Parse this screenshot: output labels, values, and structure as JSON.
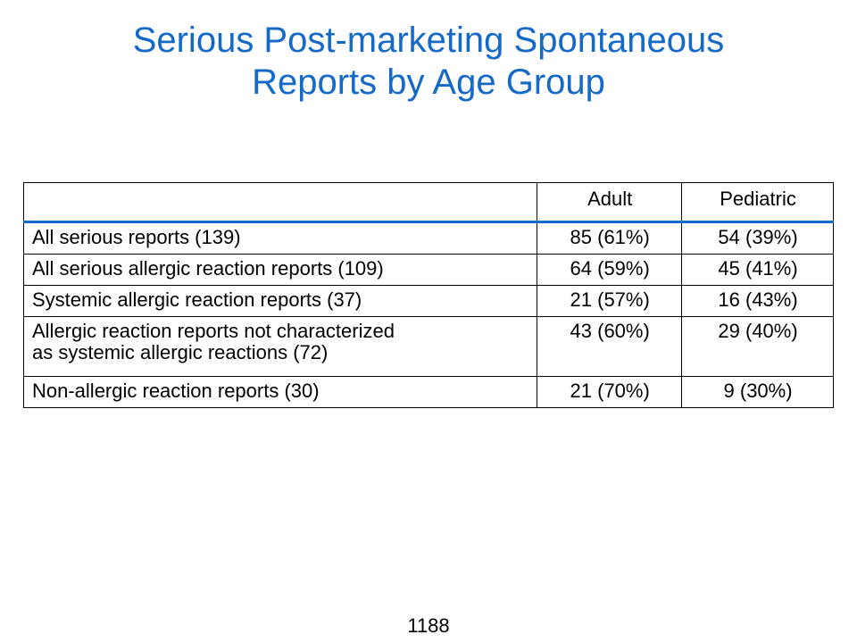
{
  "slide": {
    "title_line1": "Serious Post-marketing Spontaneous",
    "title_line2": "Reports by Age Group",
    "page_number": "1188"
  },
  "table": {
    "headers": [
      "",
      "Adult",
      "Pediatric"
    ],
    "rows": [
      {
        "label": "All serious reports (139)",
        "adult": "85 (61%)",
        "pediatric": "54 (39%)"
      },
      {
        "label": "All serious allergic reaction reports (109)",
        "adult": "64 (59%)",
        "pediatric": "45 (41%)"
      },
      {
        "label": "Systemic allergic reaction reports (37)",
        "adult": "21 (57%)",
        "pediatric": "16 (43%)"
      },
      {
        "label_line1": "Allergic reaction reports not characterized",
        "label_line2": "as systemic allergic reactions (72)",
        "adult": "43 (60%)",
        "pediatric": "29 (40%)"
      },
      {
        "label": "Non-allergic reaction reports (30)",
        "adult": "21 (70%)",
        "pediatric": "9 (30%)"
      }
    ]
  },
  "colors": {
    "title": "#1569c7",
    "header_rule": "#1569c7"
  }
}
